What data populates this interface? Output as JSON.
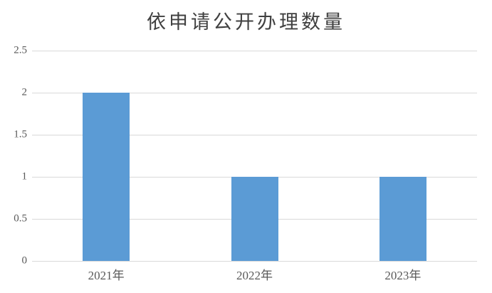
{
  "chart_data": {
    "type": "bar",
    "title": "依申请公开办理数量",
    "categories": [
      "2021年",
      "2022年",
      "2023年"
    ],
    "values": [
      2,
      1,
      1
    ],
    "xlabel": "",
    "ylabel": "",
    "ylim": [
      0,
      2.5
    ],
    "y_ticks": [
      0,
      0.5,
      1,
      1.5,
      2,
      2.5
    ],
    "grid": true,
    "legend_position": "none",
    "colors": {
      "bar": "#5b9bd5",
      "gridline": "#d9d9d9",
      "axis_line": "#d9d9d9",
      "title_text": "#404040",
      "tick_text": "#595959",
      "background": "#ffffff"
    }
  }
}
